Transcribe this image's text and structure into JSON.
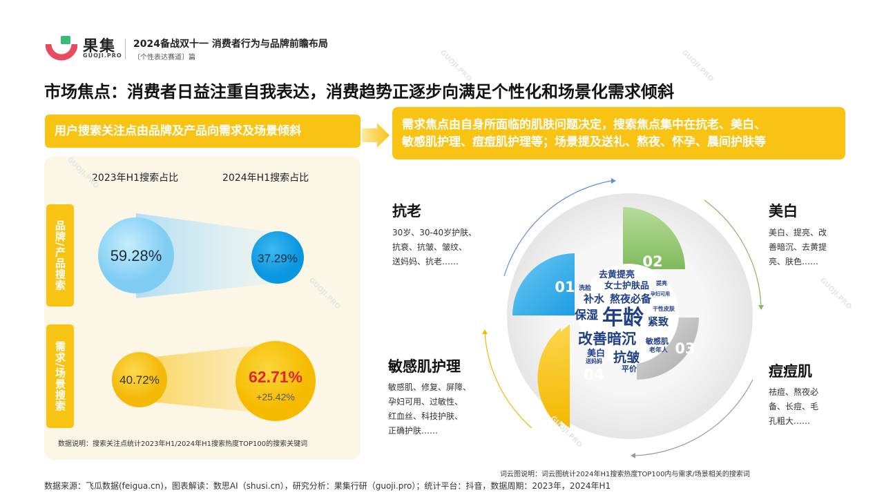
{
  "header": {
    "brand_name": "果集",
    "brand_domain": "GUOJI.PRO",
    "report_title": "2024备战双十一 消费者行为与品牌前瞻布局",
    "report_subtitle": "〔个性表达赛道〕篇"
  },
  "main_title": "市场焦点：消费者日益注重自我表达，消费趋势正逐步向满足个性化和场景化需求倾斜",
  "banner_left": "用户搜索关注点由品牌及产品向需求及场景倾斜",
  "banner_right": {
    "line1": "需求焦点由自身所面临的肌肤问题决定，搜索焦点集中在抗老、美白、",
    "line2": "敏感肌护理、痘痘肌护理等；场景提及送礼、熬夜、怀孕、晨间护肤等"
  },
  "left_panel": {
    "col_2023": "2023年H1搜索占比",
    "col_2024": "2024年H1搜索占比",
    "rows": [
      {
        "label": "品牌/产品搜索",
        "v2023": "59.28%",
        "v2024": "37.29%"
      },
      {
        "label": "需求/场景搜索",
        "v2023": "40.72%",
        "v2024": "62.71%",
        "delta": "+25.42%"
      }
    ],
    "note": "数据说明：搜索关注点统计2023年H1/2024年H1搜索热度TOP100的搜索关键词"
  },
  "quadrants": {
    "q1": {
      "num": "01",
      "title": "抗老",
      "lines": [
        "30岁、30-40岁护肤、",
        "抗衰、抗皱、皱纹、",
        "送妈妈、抗老……"
      ]
    },
    "q2": {
      "num": "02",
      "title": "美白",
      "lines": [
        "美白、提亮、改",
        "善暗沉、去黄提",
        "亮、肤色……"
      ]
    },
    "q3": {
      "num": "03",
      "title": "痘痘肌",
      "lines": [
        "祛痘、熬夜必",
        "备、长痘、毛",
        "孔粗大……"
      ]
    },
    "q4": {
      "num": "04",
      "title": "敏感肌护理",
      "lines": [
        "敏感肌、修复、屏障、",
        "孕妇可用、过敏性、",
        "红血丝、科技护肤、",
        "正确护肤……"
      ]
    }
  },
  "word_cloud": {
    "words": [
      "去黄提亮",
      "女士护肤品",
      "补水",
      "熬夜必备",
      "保湿",
      "年龄",
      "紧致",
      "改善暗沉",
      "敏感肌",
      "美白",
      "抗皱",
      "平价",
      "洗脸",
      "老年人",
      "送妈妈",
      "干性皮肤",
      "提亮",
      "孕妇可用"
    ]
  },
  "cloud_note": "词云图说明：词云图统计2024年H1搜索热度TOP100内与需求/场景相关的搜索词",
  "footer": "数据来源：飞瓜数据(feigua.cn)，图表解读：数思AI（shusi.cn），研究分析：果集行研（guoji.pro）；统计平台：抖音，数据周期：2023年，2024年H1",
  "watermark": "GUOJI.PRO",
  "colors": {
    "yellow": "#f8c313",
    "blue": "#2ba8ea",
    "green": "#8cc56a",
    "gray": "#bdbdbd",
    "red": "#e0262a",
    "brand_red": "#e84a5f",
    "brand_green": "#3cb878"
  }
}
